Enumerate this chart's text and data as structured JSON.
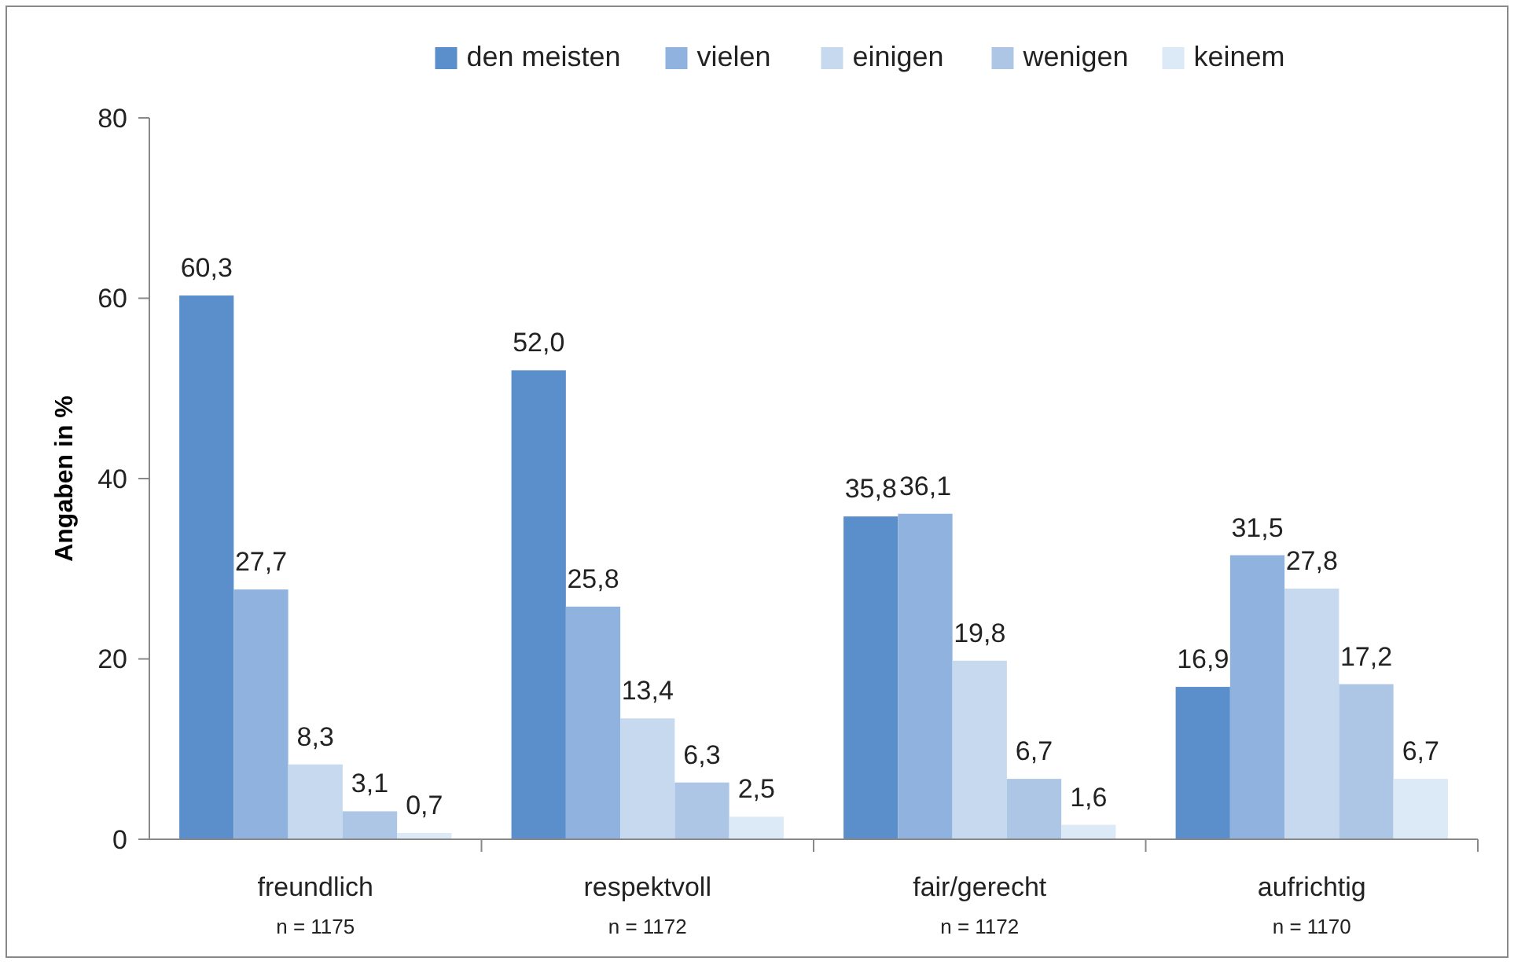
{
  "chart_data": {
    "type": "bar",
    "ylabel": "Angaben in %",
    "categories": [
      "freundlich\nn = 1175",
      "respektvoll\nn = 1172",
      "fair/gerecht\nn = 1172",
      "aufrichtig\nn = 1170"
    ],
    "series": [
      {
        "name": "den meisten",
        "color": "#5b8fcb",
        "values": [
          60.3,
          52.0,
          35.8,
          16.9
        ],
        "value_labels": [
          "60,3",
          "52,0",
          "35,8",
          "16,9"
        ]
      },
      {
        "name": "vielen",
        "color": "#8fb3de",
        "values": [
          27.7,
          25.8,
          36.1,
          31.5
        ],
        "value_labels": [
          "27,7",
          "25,8",
          "36,1",
          "31,5"
        ]
      },
      {
        "name": "einigen",
        "color": "#c6d9ef",
        "values": [
          8.3,
          13.4,
          19.8,
          27.8
        ],
        "value_labels": [
          "8,3",
          "13,4",
          "19,8",
          "27,8"
        ]
      },
      {
        "name": "wenigen",
        "color": "#adc6e6",
        "values": [
          3.1,
          6.3,
          6.7,
          17.2
        ],
        "value_labels": [
          "3,1",
          "6,3",
          "6,7",
          "17,2"
        ]
      },
      {
        "name": "keinem",
        "color": "#dce9f6",
        "values": [
          0.7,
          2.5,
          1.6,
          6.7
        ],
        "value_labels": [
          "0,7",
          "2,5",
          "1,6",
          "6,7"
        ]
      }
    ],
    "ylim": [
      0,
      80
    ],
    "yticks": [
      0,
      20,
      40,
      60,
      80
    ],
    "grid": false,
    "legend": "top"
  }
}
